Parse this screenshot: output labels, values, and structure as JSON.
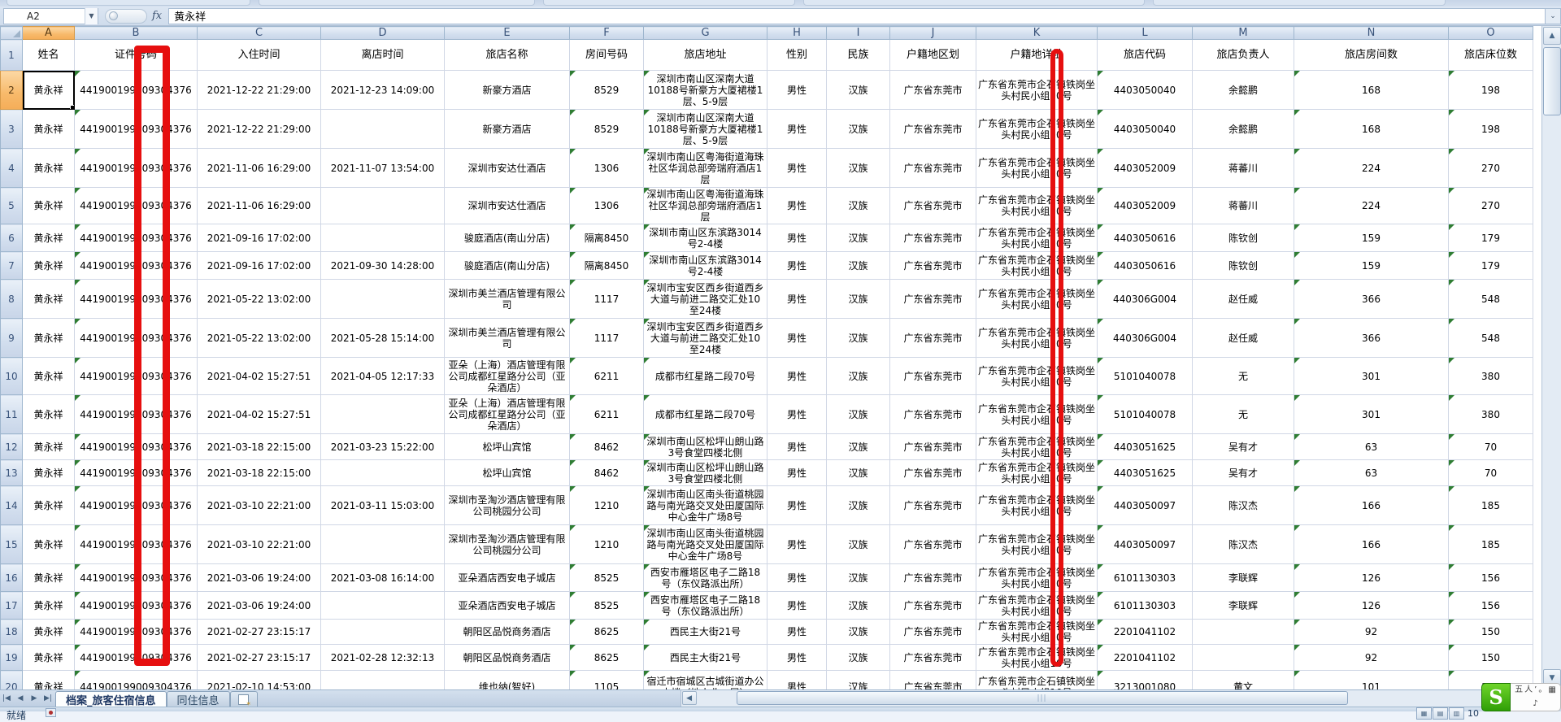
{
  "app": {
    "name_box": "A2",
    "fx_label": "fx",
    "formula_value": "黄永祥"
  },
  "columns": [
    {
      "letter": "A",
      "label": "姓名"
    },
    {
      "letter": "B",
      "label": "证件号码"
    },
    {
      "letter": "C",
      "label": "入住时间"
    },
    {
      "letter": "D",
      "label": "离店时间"
    },
    {
      "letter": "E",
      "label": "旅店名称"
    },
    {
      "letter": "F",
      "label": "房间号码"
    },
    {
      "letter": "G",
      "label": "旅店地址"
    },
    {
      "letter": "H",
      "label": "性别"
    },
    {
      "letter": "I",
      "label": "民族"
    },
    {
      "letter": "J",
      "label": "户籍地区划"
    },
    {
      "letter": "K",
      "label": "户籍地详址"
    },
    {
      "letter": "L",
      "label": "旅店代码"
    },
    {
      "letter": "M",
      "label": "旅店负责人"
    },
    {
      "letter": "N",
      "label": "旅店房间数"
    },
    {
      "letter": "O",
      "label": "旅店床位数"
    }
  ],
  "rows": [
    {
      "n": 2,
      "A": "黄永祥",
      "B": "441900199009304376",
      "C": "2021-12-22 21:29:00",
      "D": "2021-12-23 14:09:00",
      "E": "新豪方酒店",
      "F": "8529",
      "G": "深圳市南山区深南大道10188号新豪方大厦裙楼1层、5-9层",
      "H": "男性",
      "I": "汉族",
      "J": "广东省东莞市",
      "K": "广东省东莞市企石镇铁岗坐头村民小组10号",
      "L": "4403050040",
      "M": "余懿鹏",
      "N": "168",
      "O": "198"
    },
    {
      "n": 3,
      "A": "黄永祥",
      "B": "441900199009304376",
      "C": "2021-12-22 21:29:00",
      "D": "",
      "E": "新豪方酒店",
      "F": "8529",
      "G": "深圳市南山区深南大道10188号新豪方大厦裙楼1层、5-9层",
      "H": "男性",
      "I": "汉族",
      "J": "广东省东莞市",
      "K": "广东省东莞市企石镇铁岗坐头村民小组10号",
      "L": "4403050040",
      "M": "余懿鹏",
      "N": "168",
      "O": "198"
    },
    {
      "n": 4,
      "A": "黄永祥",
      "B": "441900199009304376",
      "C": "2021-11-06 16:29:00",
      "D": "2021-11-07 13:54:00",
      "E": "深圳市安达仕酒店",
      "F": "1306",
      "G": "深圳市南山区粤海街道海珠社区华润总部旁瑞府酒店1层",
      "H": "男性",
      "I": "汉族",
      "J": "广东省东莞市",
      "K": "广东省东莞市企石镇铁岗坐头村民小组10号",
      "L": "4403052009",
      "M": "蒋蕃川",
      "N": "224",
      "O": "270"
    },
    {
      "n": 5,
      "A": "黄永祥",
      "B": "441900199009304376",
      "C": "2021-11-06 16:29:00",
      "D": "",
      "E": "深圳市安达仕酒店",
      "F": "1306",
      "G": "深圳市南山区粤海街道海珠社区华润总部旁瑞府酒店1层",
      "H": "男性",
      "I": "汉族",
      "J": "广东省东莞市",
      "K": "广东省东莞市企石镇铁岗坐头村民小组10号",
      "L": "4403052009",
      "M": "蒋蕃川",
      "N": "224",
      "O": "270"
    },
    {
      "n": 6,
      "A": "黄永祥",
      "B": "441900199009304376",
      "C": "2021-09-16 17:02:00",
      "D": "",
      "E": "骏庭酒店(南山分店)",
      "F": "隔离8450",
      "G": "深圳市南山区东滨路3014号2-4楼",
      "H": "男性",
      "I": "汉族",
      "J": "广东省东莞市",
      "K": "广东省东莞市企石镇铁岗坐头村民小组10号",
      "L": "4403050616",
      "M": "陈钦创",
      "N": "159",
      "O": "179"
    },
    {
      "n": 7,
      "A": "黄永祥",
      "B": "441900199009304376",
      "C": "2021-09-16 17:02:00",
      "D": "2021-09-30 14:28:00",
      "E": "骏庭酒店(南山分店)",
      "F": "隔离8450",
      "G": "深圳市南山区东滨路3014号2-4楼",
      "H": "男性",
      "I": "汉族",
      "J": "广东省东莞市",
      "K": "广东省东莞市企石镇铁岗坐头村民小组10号",
      "L": "4403050616",
      "M": "陈钦创",
      "N": "159",
      "O": "179"
    },
    {
      "n": 8,
      "A": "黄永祥",
      "B": "441900199009304376",
      "C": "2021-05-22 13:02:00",
      "D": "",
      "E": "深圳市美兰酒店管理有限公司",
      "F": "1117",
      "G": "深圳市宝安区西乡街道西乡大道与前进二路交汇处10至24楼",
      "H": "男性",
      "I": "汉族",
      "J": "广东省东莞市",
      "K": "广东省东莞市企石镇铁岗坐头村民小组10号",
      "L": "440306G004",
      "M": "赵任威",
      "N": "366",
      "O": "548"
    },
    {
      "n": 9,
      "A": "黄永祥",
      "B": "441900199009304376",
      "C": "2021-05-22 13:02:00",
      "D": "2021-05-28 15:14:00",
      "E": "深圳市美兰酒店管理有限公司",
      "F": "1117",
      "G": "深圳市宝安区西乡街道西乡大道与前进二路交汇处10至24楼",
      "H": "男性",
      "I": "汉族",
      "J": "广东省东莞市",
      "K": "广东省东莞市企石镇铁岗坐头村民小组10号",
      "L": "440306G004",
      "M": "赵任威",
      "N": "366",
      "O": "548"
    },
    {
      "n": 10,
      "A": "黄永祥",
      "B": "441900199009304376",
      "C": "2021-04-02 15:27:51",
      "D": "2021-04-05 12:17:33",
      "E": "亚朵（上海）酒店管理有限公司成都红星路分公司（亚朵酒店）",
      "F": "6211",
      "G": "成都市红星路二段70号",
      "H": "男性",
      "I": "汉族",
      "J": "广东省东莞市",
      "K": "广东省东莞市企石镇铁岗坐头村民小组10号",
      "L": "5101040078",
      "M": "无",
      "N": "301",
      "O": "380"
    },
    {
      "n": 11,
      "A": "黄永祥",
      "B": "441900199009304376",
      "C": "2021-04-02 15:27:51",
      "D": "",
      "E": "亚朵（上海）酒店管理有限公司成都红星路分公司（亚朵酒店）",
      "F": "6211",
      "G": "成都市红星路二段70号",
      "H": "男性",
      "I": "汉族",
      "J": "广东省东莞市",
      "K": "广东省东莞市企石镇铁岗坐头村民小组10号",
      "L": "5101040078",
      "M": "无",
      "N": "301",
      "O": "380"
    },
    {
      "n": 12,
      "A": "黄永祥",
      "B": "441900199009304376",
      "C": "2021-03-18 22:15:00",
      "D": "2021-03-23 15:22:00",
      "E": "松坪山宾馆",
      "F": "8462",
      "G": "深圳市南山区松坪山朗山路3号食堂四楼北侧",
      "H": "男性",
      "I": "汉族",
      "J": "广东省东莞市",
      "K": "广东省东莞市企石镇铁岗坐头村民小组10号",
      "L": "4403051625",
      "M": "吴有才",
      "N": "63",
      "O": "70"
    },
    {
      "n": 13,
      "A": "黄永祥",
      "B": "441900199009304376",
      "C": "2021-03-18 22:15:00",
      "D": "",
      "E": "松坪山宾馆",
      "F": "8462",
      "G": "深圳市南山区松坪山朗山路3号食堂四楼北侧",
      "H": "男性",
      "I": "汉族",
      "J": "广东省东莞市",
      "K": "广东省东莞市企石镇铁岗坐头村民小组10号",
      "L": "4403051625",
      "M": "吴有才",
      "N": "63",
      "O": "70"
    },
    {
      "n": 14,
      "A": "黄永祥",
      "B": "441900199009304376",
      "C": "2021-03-10 22:21:00",
      "D": "2021-03-11 15:03:00",
      "E": "深圳市圣淘沙酒店管理有限公司桃园分公司",
      "F": "1210",
      "G": "深圳市南山区南头街道桃园路与南光路交叉处田厦国际中心金牛广场8号",
      "H": "男性",
      "I": "汉族",
      "J": "广东省东莞市",
      "K": "广东省东莞市企石镇铁岗坐头村民小组10号",
      "L": "4403050097",
      "M": "陈汉杰",
      "N": "166",
      "O": "185"
    },
    {
      "n": 15,
      "A": "黄永祥",
      "B": "441900199009304376",
      "C": "2021-03-10 22:21:00",
      "D": "",
      "E": "深圳市圣淘沙酒店管理有限公司桃园分公司",
      "F": "1210",
      "G": "深圳市南山区南头街道桃园路与南光路交叉处田厦国际中心金牛广场8号",
      "H": "男性",
      "I": "汉族",
      "J": "广东省东莞市",
      "K": "广东省东莞市企石镇铁岗坐头村民小组10号",
      "L": "4403050097",
      "M": "陈汉杰",
      "N": "166",
      "O": "185"
    },
    {
      "n": 16,
      "A": "黄永祥",
      "B": "441900199009304376",
      "C": "2021-03-06 19:24:00",
      "D": "2021-03-08 16:14:00",
      "E": "亚朵酒店西安电子城店",
      "F": "8525",
      "G": "西安市雁塔区电子二路18号（东仪路派出所）",
      "H": "男性",
      "I": "汉族",
      "J": "广东省东莞市",
      "K": "广东省东莞市企石镇铁岗坐头村民小组10号",
      "L": "6101130303",
      "M": "李联辉",
      "N": "126",
      "O": "156"
    },
    {
      "n": 17,
      "A": "黄永祥",
      "B": "441900199009304376",
      "C": "2021-03-06 19:24:00",
      "D": "",
      "E": "亚朵酒店西安电子城店",
      "F": "8525",
      "G": "西安市雁塔区电子二路18号（东仪路派出所）",
      "H": "男性",
      "I": "汉族",
      "J": "广东省东莞市",
      "K": "广东省东莞市企石镇铁岗坐头村民小组10号",
      "L": "6101130303",
      "M": "李联辉",
      "N": "126",
      "O": "156"
    },
    {
      "n": 18,
      "A": "黄永祥",
      "B": "441900199009304376",
      "C": "2021-02-27 23:15:17",
      "D": "",
      "E": "朝阳区品悦商务酒店",
      "F": "8625",
      "G": "西民主大街21号",
      "H": "男性",
      "I": "汉族",
      "J": "广东省东莞市",
      "K": "广东省东莞市企石镇铁岗坐头村民小组10号",
      "L": "2201041102",
      "M": "",
      "N": "92",
      "O": "150"
    },
    {
      "n": 19,
      "A": "黄永祥",
      "B": "441900199009304376",
      "C": "2021-02-27 23:15:17",
      "D": "2021-02-28 12:32:13",
      "E": "朝阳区品悦商务酒店",
      "F": "8625",
      "G": "西民主大街21号",
      "H": "男性",
      "I": "汉族",
      "J": "广东省东莞市",
      "K": "广东省东莞市企石镇铁岗坐头村民小组10号",
      "L": "2201041102",
      "M": "",
      "N": "92",
      "O": "150"
    },
    {
      "n": 20,
      "A": "黄永祥",
      "B": "441900199009304376",
      "C": "2021-02-10 14:53:00",
      "D": "",
      "E": "维也纳(智好)",
      "F": "1105",
      "G": "宿迁市宿城区古城街道办公大楼（地上北一层）",
      "H": "男性",
      "I": "汉族",
      "J": "广东省东莞市",
      "K": "广东省东莞市企石镇铁岗坐头村民小组10号",
      "L": "3213001080",
      "M": "黄文",
      "N": "101",
      "O": "130"
    }
  ],
  "selection": {
    "cell": "A2",
    "column": "A",
    "row": 2
  },
  "sheet_tabs": {
    "tabs": [
      "档案_旅客住宿信息",
      "同住信息"
    ],
    "active": "档案_旅客住宿信息"
  },
  "status": {
    "ready": "就绪",
    "zoom": "10"
  },
  "ime_toolbar": {
    "logo": "S",
    "glyphs": [
      "五",
      "人",
      "’",
      "。",
      "▦",
      "♪"
    ]
  },
  "annotations": {
    "red_color": "#e60f0f",
    "redbox_over": "证件号码列 (B)",
    "redbar_over": "户籍地详址列 (K)"
  },
  "colors": {
    "header_selected": "#f7b96a",
    "header_normal": "#d2deee",
    "gridline": "#d0d7e5",
    "error_triangle": "#2f7d33",
    "sogou_green": "#3bb20a"
  }
}
